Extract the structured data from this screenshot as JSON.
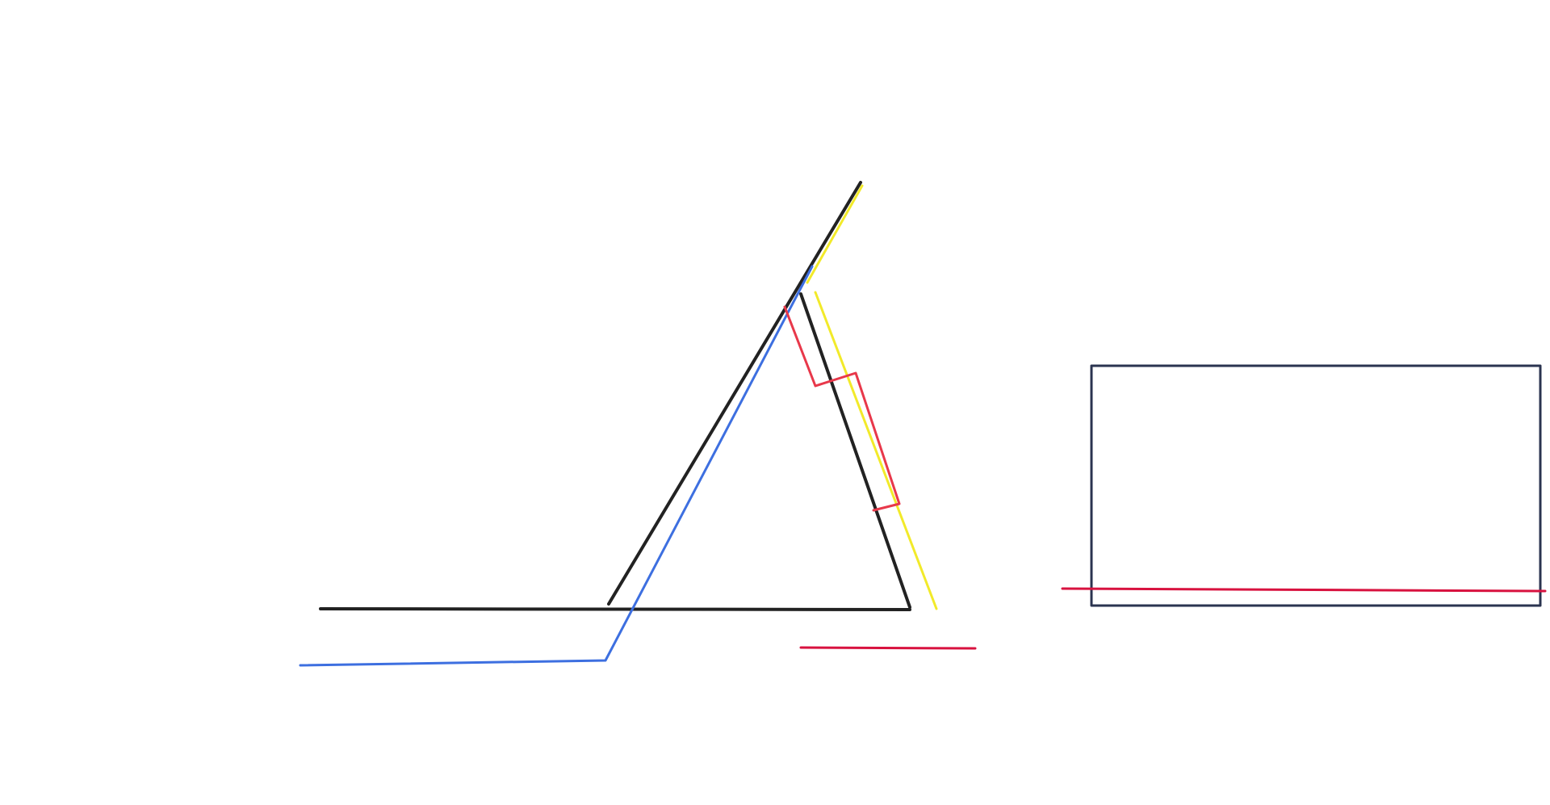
{
  "sketch": {
    "colors": {
      "black": "#222222",
      "blue": "#3d6fe0",
      "yellow": "#f2ea2a",
      "red": "#e8384a",
      "crimson": "#d8123f",
      "navy": "#2b3450"
    }
  }
}
